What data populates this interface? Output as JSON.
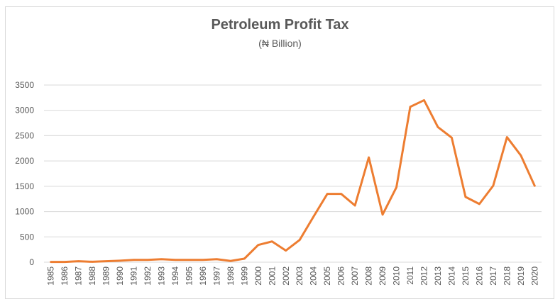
{
  "chart_data": {
    "type": "line",
    "title": "Petroleum Profit Tax",
    "subtitle": "(₦ Billion)",
    "xlabel": "",
    "ylabel": "",
    "ylim": [
      0,
      3500
    ],
    "yticks": [
      "0",
      "500",
      "1000",
      "1500",
      "2000",
      "2500",
      "3000",
      "3500"
    ],
    "grid": true,
    "legend": "none",
    "color": "#ED7D31",
    "categories": [
      "1985",
      "1986",
      "1987",
      "1988",
      "1989",
      "1990",
      "1991",
      "1992",
      "1993",
      "1994",
      "1995",
      "1996",
      "1997",
      "1998",
      "1999",
      "2000",
      "2001",
      "2002",
      "2003",
      "2004",
      "2005",
      "2006",
      "2007",
      "2008",
      "2009",
      "2010",
      "2011",
      "2012",
      "2013",
      "2014",
      "2015",
      "2016",
      "2017",
      "2018",
      "2019",
      "2020"
    ],
    "series": [
      {
        "name": "Petroleum Profit Tax",
        "values": [
          5,
          5,
          20,
          8,
          20,
          30,
          45,
          45,
          60,
          45,
          45,
          45,
          60,
          25,
          70,
          340,
          410,
          230,
          440,
          900,
          1350,
          1350,
          1120,
          2070,
          940,
          1480,
          3070,
          3200,
          2670,
          2460,
          1290,
          1150,
          1510,
          2470,
          2110,
          1510
        ]
      }
    ]
  }
}
